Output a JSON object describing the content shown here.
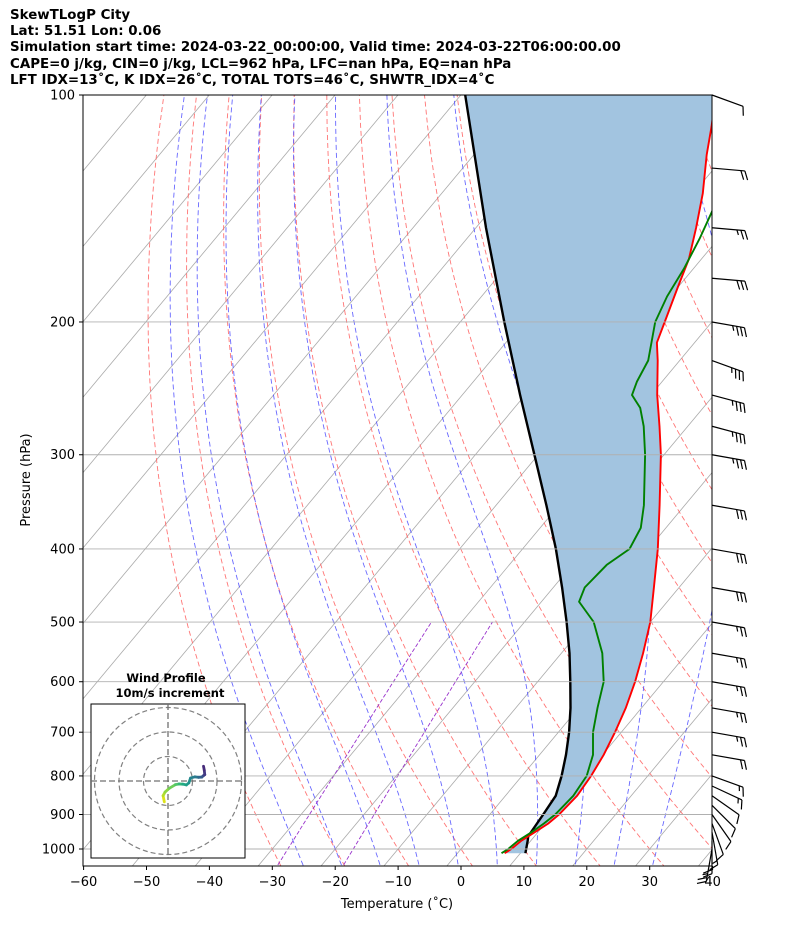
{
  "header": {
    "line1": "SkewTLogP City",
    "line2": "Lat: 51.51   Lon: 0.06",
    "line3": "Simulation start time: 2024-03-22_00:00:00, Valid time: 2024-03-22T06:00:00.00",
    "line4": "CAPE=0 j/kg, CIN=0 j/kg, LCL=962 hPa, LFC=nan hPa, EQ=nan hPa",
    "line5": "LFT IDX=13˚C, K IDX=26˚C, TOTAL TOTS=46˚C, SHWTR_IDX=4˚C"
  },
  "chart_data": {
    "type": "line",
    "title": "",
    "xlabel": "Temperature (˚C)",
    "ylabel": "Pressure (hPa)",
    "xlim": [
      -60,
      40
    ],
    "ylim": [
      1050,
      100
    ],
    "y_scale": "log",
    "skew": "skew-T log-P",
    "grid": true,
    "x_ticks": [
      "−60",
      "−50",
      "−40",
      "−30",
      "−20",
      "−10",
      "0",
      "10",
      "20",
      "30",
      "40"
    ],
    "x_tick_values": [
      -60,
      -50,
      -40,
      -30,
      -20,
      -10,
      0,
      10,
      20,
      30,
      40
    ],
    "y_ticks": [
      "100",
      "200",
      "300",
      "400",
      "500",
      "600",
      "700",
      "800",
      "900",
      "1000"
    ],
    "y_tick_values": [
      100,
      200,
      300,
      400,
      500,
      600,
      700,
      800,
      900,
      1000
    ],
    "series": [
      {
        "role": "temperature",
        "color": "#ff0000",
        "points": [
          [
            1013,
            7.5
          ],
          [
            1000,
            8.0
          ],
          [
            975,
            8.5
          ],
          [
            950,
            9.5
          ],
          [
            925,
            10.5
          ],
          [
            900,
            11.0
          ],
          [
            850,
            11.4
          ],
          [
            800,
            11.0
          ],
          [
            750,
            10.2
          ],
          [
            700,
            9.0
          ],
          [
            650,
            7.5
          ],
          [
            600,
            5.5
          ],
          [
            550,
            3.0
          ],
          [
            500,
            0.0
          ],
          [
            450,
            -4.0
          ],
          [
            400,
            -8.5
          ],
          [
            350,
            -14.0
          ],
          [
            300,
            -20.5
          ],
          [
            275,
            -24.5
          ],
          [
            250,
            -29.0
          ],
          [
            225,
            -33.5
          ],
          [
            213,
            -36.0
          ],
          [
            200,
            -37.5
          ],
          [
            180,
            -40.0
          ],
          [
            165,
            -42.0
          ],
          [
            150,
            -45.0
          ],
          [
            135,
            -48.5
          ],
          [
            120,
            -53.0
          ],
          [
            110,
            -56.0
          ],
          [
            100,
            -59.5
          ]
        ]
      },
      {
        "role": "dewpoint",
        "color": "#008000",
        "points": [
          [
            1013,
            7.0
          ],
          [
            1000,
            7.5
          ],
          [
            975,
            8.0
          ],
          [
            950,
            9.0
          ],
          [
            925,
            9.8
          ],
          [
            900,
            10.4
          ],
          [
            850,
            10.8
          ],
          [
            800,
            10.3
          ],
          [
            750,
            8.5
          ],
          [
            700,
            5.5
          ],
          [
            650,
            3.0
          ],
          [
            600,
            0.5
          ],
          [
            550,
            -3.5
          ],
          [
            500,
            -9.0
          ],
          [
            470,
            -14.0
          ],
          [
            450,
            -15.0
          ],
          [
            420,
            -14.5
          ],
          [
            400,
            -13.0
          ],
          [
            375,
            -14.0
          ],
          [
            350,
            -16.5
          ],
          [
            300,
            -23.0
          ],
          [
            275,
            -27.0
          ],
          [
            260,
            -30.0
          ],
          [
            250,
            -33.0
          ],
          [
            240,
            -34.0
          ],
          [
            225,
            -35.0
          ],
          [
            200,
            -39.0
          ],
          [
            185,
            -40.5
          ],
          [
            170,
            -41.5
          ],
          [
            155,
            -43.0
          ],
          [
            140,
            -45.0
          ],
          [
            125,
            -48.0
          ],
          [
            110,
            -54.0
          ],
          [
            100,
            -58.0
          ]
        ]
      },
      {
        "role": "parcel",
        "color": "#000000",
        "points": [
          [
            1013,
            10.8
          ],
          [
            975,
            9.5
          ],
          [
            962,
            9.0
          ],
          [
            900,
            8.5
          ],
          [
            850,
            8.0
          ],
          [
            800,
            6.3
          ],
          [
            750,
            4.2
          ],
          [
            700,
            1.7
          ],
          [
            650,
            -1.3
          ],
          [
            600,
            -4.8
          ],
          [
            550,
            -8.7
          ],
          [
            500,
            -13.3
          ],
          [
            450,
            -18.6
          ],
          [
            400,
            -24.7
          ],
          [
            350,
            -32.0
          ],
          [
            300,
            -40.6
          ],
          [
            250,
            -50.8
          ],
          [
            200,
            -63.0
          ],
          [
            150,
            -78.4
          ],
          [
            100,
            -99.3
          ]
        ]
      }
    ],
    "shading": {
      "between": [
        "temperature",
        "parcel"
      ],
      "color": "#a2c4e0"
    },
    "background_lines": {
      "isotherms_color": "#aaaaaa",
      "dry_adiabats_color": "#ff6666",
      "moist_adiabats_color": "#4d4dff",
      "mixing_ratio_color": "#9933cc"
    },
    "wind_barbs": {
      "levels": [
        100,
        125,
        150,
        175,
        200,
        225,
        250,
        275,
        300,
        350,
        400,
        450,
        500,
        550,
        600,
        650,
        700,
        750,
        800,
        825,
        850,
        875,
        900,
        925,
        950,
        975,
        1000
      ],
      "speeds_kt": [
        10,
        20,
        25,
        30,
        35,
        35,
        35,
        35,
        35,
        30,
        30,
        30,
        25,
        25,
        25,
        25,
        25,
        20,
        15,
        15,
        10,
        10,
        10,
        10,
        15,
        20,
        25
      ],
      "directions_deg": [
        110,
        95,
        95,
        95,
        100,
        110,
        105,
        105,
        100,
        100,
        100,
        100,
        100,
        100,
        100,
        100,
        100,
        100,
        110,
        115,
        125,
        135,
        145,
        160,
        170,
        180,
        190
      ]
    },
    "inset": {
      "title_line1": "Wind Profile",
      "title_line2": "10m/s increment",
      "rings_ms": [
        10,
        20,
        30
      ],
      "hodograph": [
        [
          -1.5,
          -8.5
        ],
        [
          -2.0,
          -6.0
        ],
        [
          -1.2,
          -4.5
        ],
        [
          0.5,
          -3.0
        ],
        [
          3.0,
          -1.5
        ],
        [
          4.5,
          -1.2
        ],
        [
          6.0,
          -1.3
        ],
        [
          7.5,
          -1.6
        ],
        [
          8.5,
          -0.8
        ],
        [
          9.2,
          1.2
        ],
        [
          11.0,
          1.7
        ],
        [
          12.5,
          1.5
        ],
        [
          13.8,
          1.6
        ],
        [
          14.5,
          2.2
        ],
        [
          15.0,
          2.6
        ],
        [
          14.8,
          4.5
        ],
        [
          14.5,
          6.0
        ]
      ]
    }
  }
}
